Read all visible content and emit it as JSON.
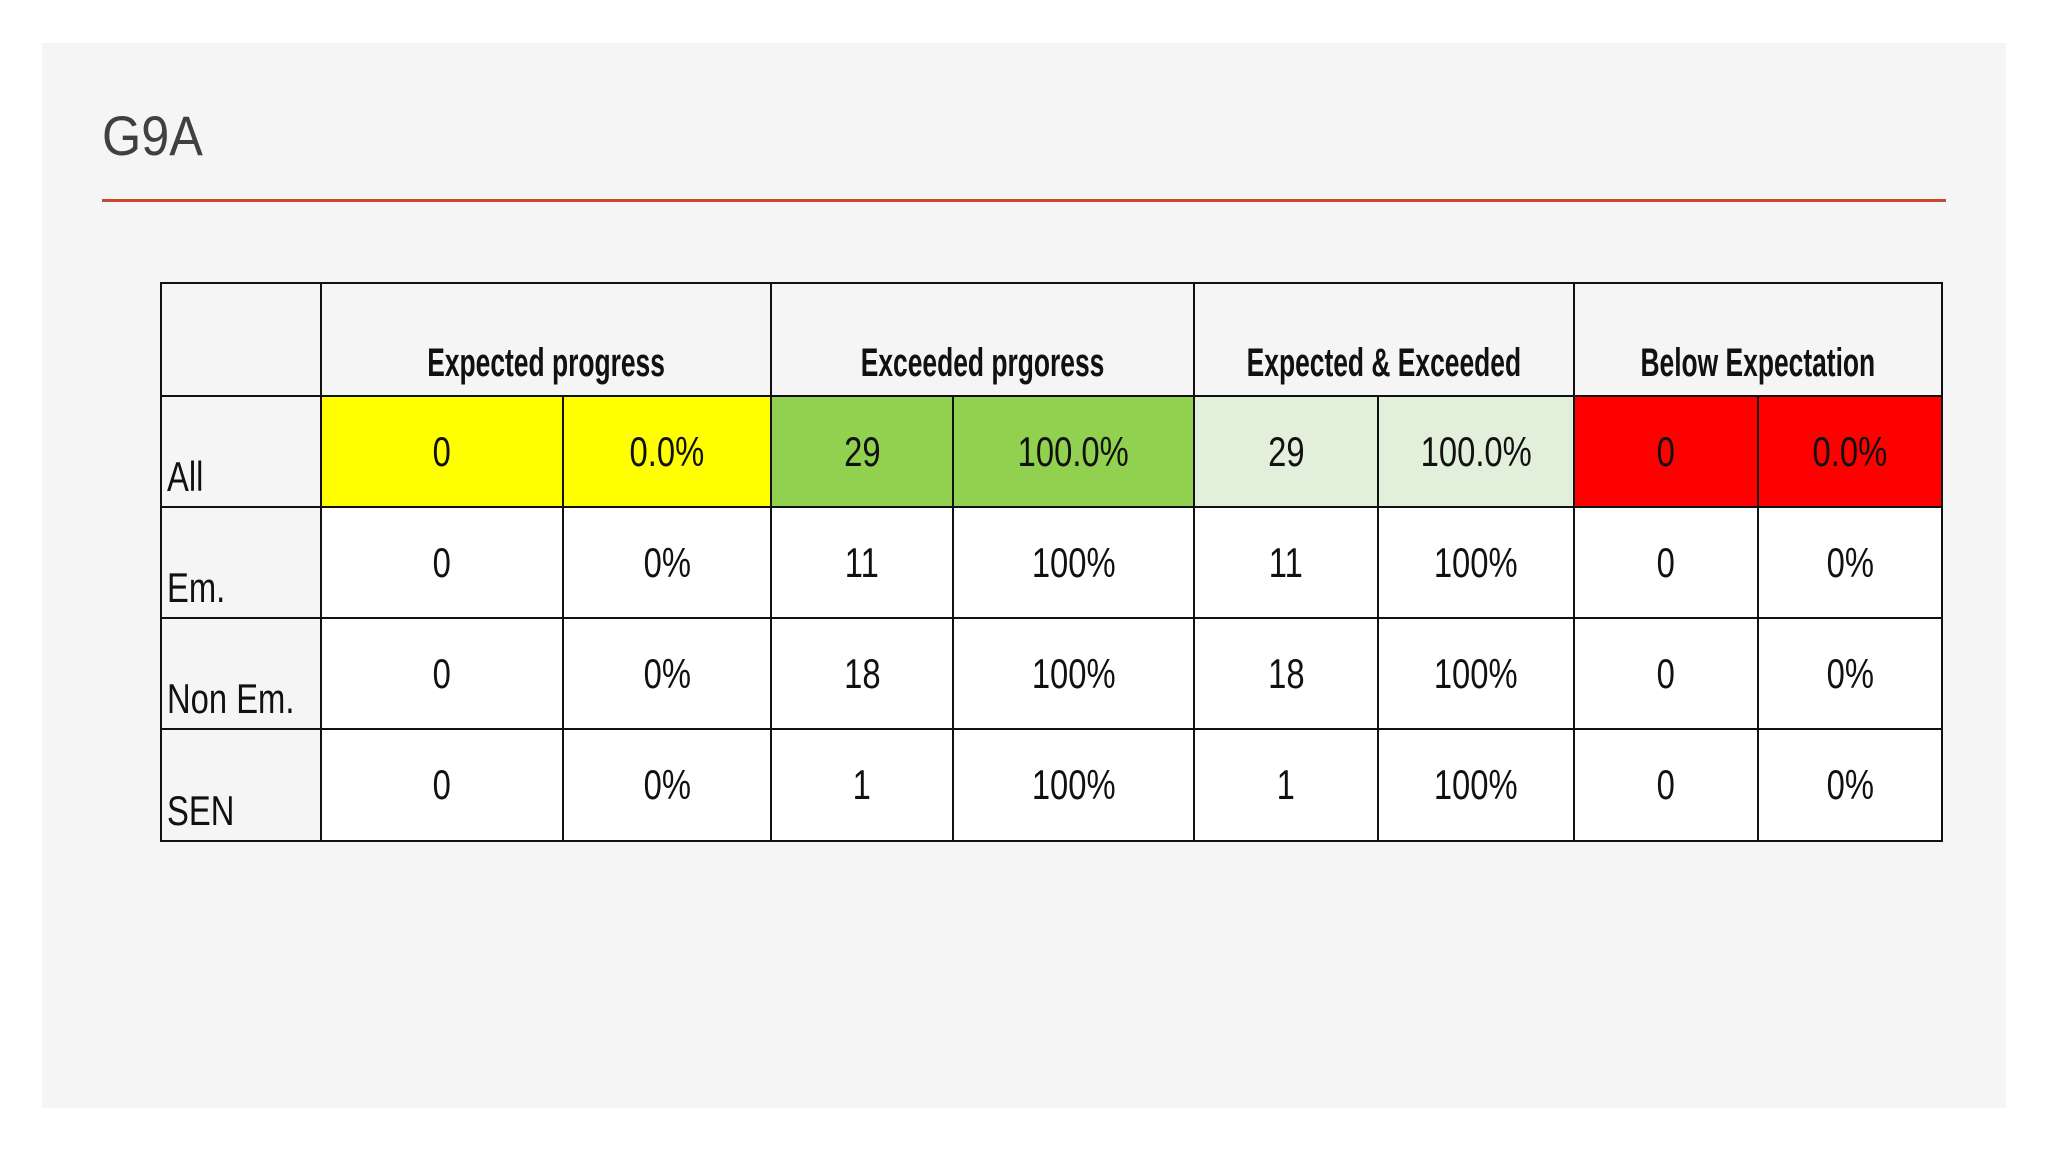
{
  "header": {
    "title": "G9A"
  },
  "table": {
    "groups": [
      "Expected progress",
      "Exceeded prgoress",
      "Expected & Exceeded",
      "Below Expectation"
    ],
    "rows": [
      [
        "All",
        "0",
        "0.0%",
        "29",
        "100.0%",
        "29",
        "100.0%",
        "0",
        "0.0%"
      ],
      [
        "Em.",
        "0",
        "0%",
        "11",
        "100%",
        "11",
        "100%",
        "0",
        "0%"
      ],
      [
        "Non Em.",
        "0",
        "0%",
        "18",
        "100%",
        "18",
        "100%",
        "0",
        "0%"
      ],
      [
        "SEN",
        "0",
        "0%",
        "1",
        "100%",
        "1",
        "100%",
        "0",
        "0%"
      ]
    ]
  }
}
